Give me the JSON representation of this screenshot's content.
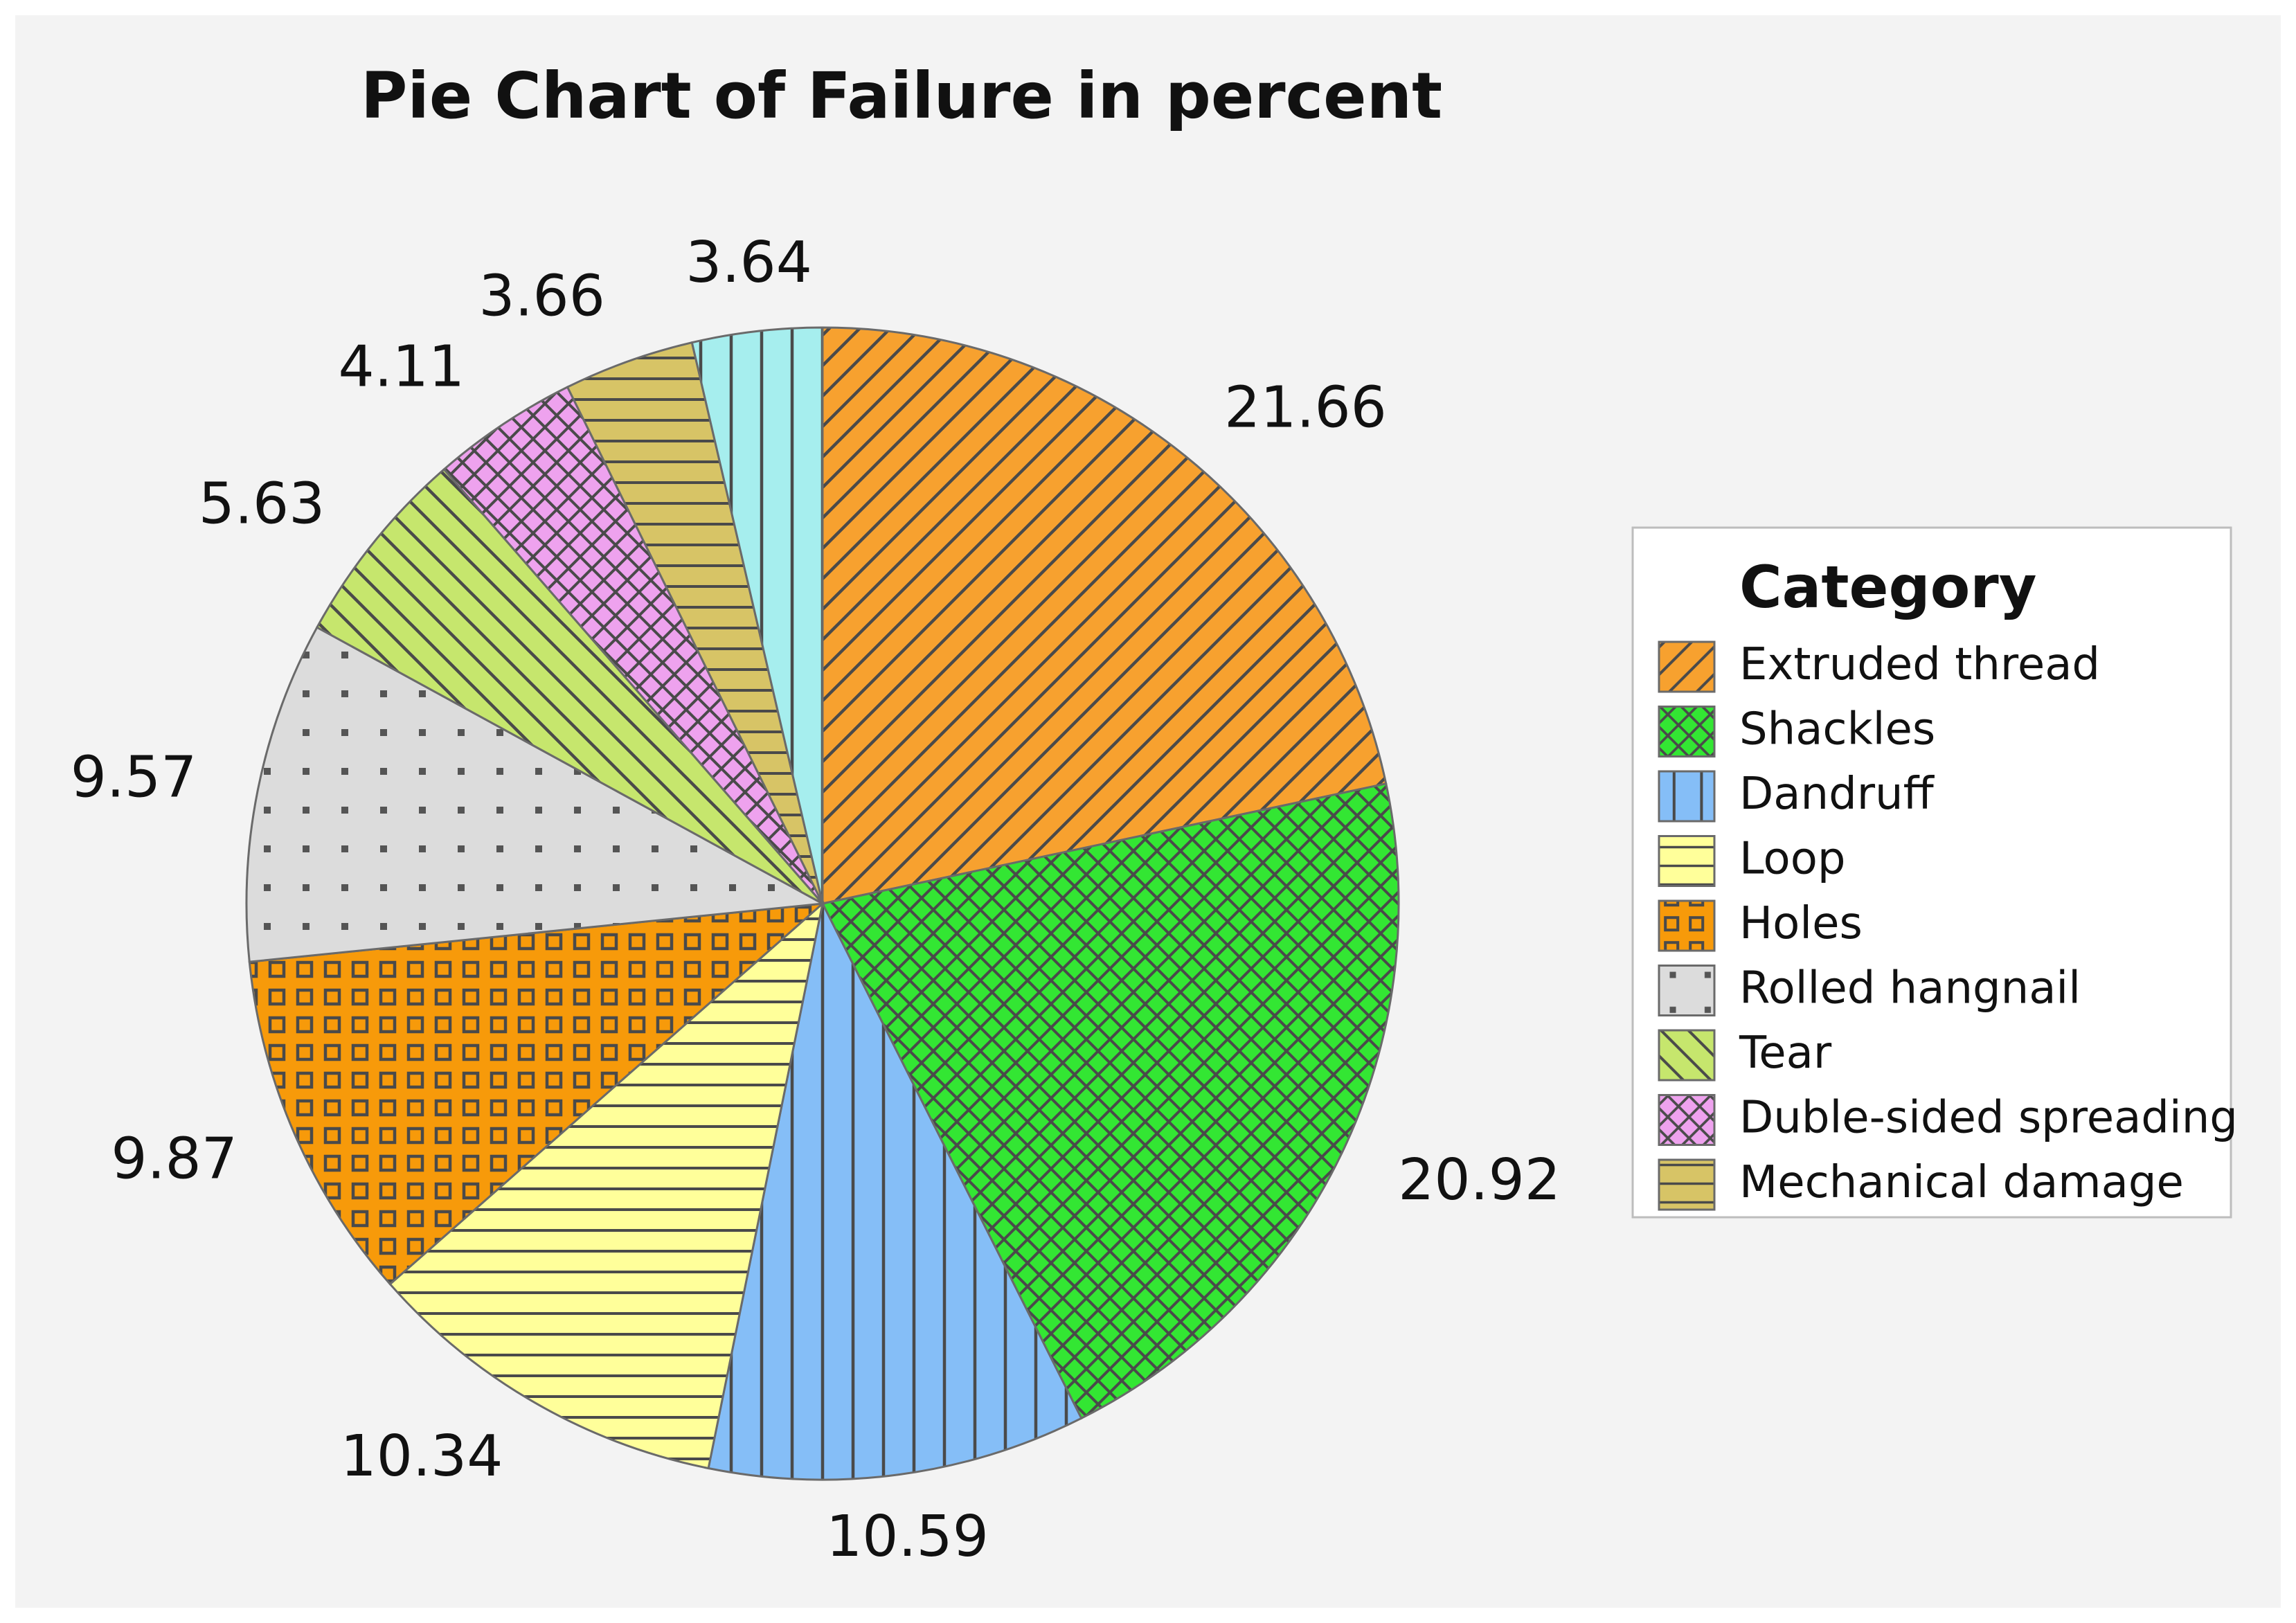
{
  "chart_data": {
    "type": "pie",
    "title": "Pie Chart of Failure in percent",
    "legend_title": "Category",
    "legend_position": "right",
    "slices": [
      {
        "label": "Extruded thread",
        "value": 21.66,
        "value_label": "21.66",
        "color": "#F7A12F",
        "pattern": "diagonal-right"
      },
      {
        "label": "Shackles",
        "value": 20.92,
        "value_label": "20.92",
        "color": "#33E633",
        "pattern": "crosshatch"
      },
      {
        "label": "Dandruff",
        "value": 10.59,
        "value_label": "10.59",
        "color": "#85BEF7",
        "pattern": "vertical"
      },
      {
        "label": "Loop",
        "value": 10.34,
        "value_label": "10.34",
        "color": "#FFFF9A",
        "pattern": "horizontal"
      },
      {
        "label": "Holes",
        "value": 9.87,
        "value_label": "9.87",
        "color": "#F79A0A",
        "pattern": "squares"
      },
      {
        "label": "Rolled hangnail",
        "value": 9.57,
        "value_label": "9.57",
        "color": "#DCDCDC",
        "pattern": "dots"
      },
      {
        "label": "Tear",
        "value": 5.63,
        "value_label": "5.63",
        "color": "#C6E66D",
        "pattern": "diagonal-left"
      },
      {
        "label": "Duble-sided spreading",
        "value": 4.11,
        "value_label": "4.11",
        "color": "#EEA2EE",
        "pattern": "crosshatch"
      },
      {
        "label": "Mechanical damage",
        "value": 3.66,
        "value_label": "3.66",
        "color": "#D7C466",
        "pattern": "horizontal"
      },
      {
        "label": "",
        "value": 3.64,
        "value_label": "3.64",
        "color": "#A6EEEE",
        "pattern": "vertical"
      }
    ]
  }
}
